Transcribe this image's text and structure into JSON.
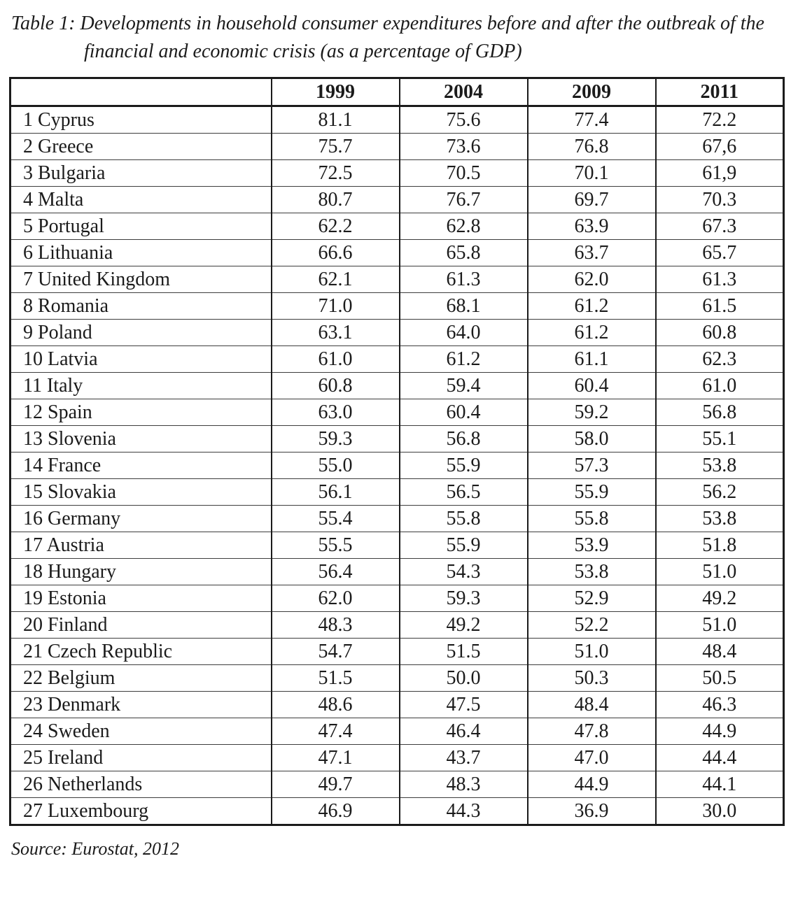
{
  "page": {
    "title_line1": "Table 1: Developments in household consumer expenditures before and after the outbreak of the",
    "title_line2": "financial and economic crisis (as a percentage of GDP)",
    "source": "Source: Eurostat, 2012",
    "ink_color": "#1b1b1b"
  },
  "chart_data": {
    "type": "table",
    "title": "Table 1: Developments in household consumer expenditures before and after the outbreak of the financial and economic crisis (as a percentage of GDP)",
    "columns": [
      "",
      "1999",
      "2004",
      "2009",
      "2011"
    ],
    "rows": [
      {
        "label": "1 Cyprus",
        "values": [
          "81.1",
          "75.6",
          "77.4",
          "72.2"
        ]
      },
      {
        "label": "2 Greece",
        "values": [
          "75.7",
          "73.6",
          "76.8",
          "67,6"
        ]
      },
      {
        "label": "3 Bulgaria",
        "values": [
          "72.5",
          "70.5",
          "70.1",
          "61,9"
        ]
      },
      {
        "label": "4 Malta",
        "values": [
          "80.7",
          "76.7",
          "69.7",
          "70.3"
        ]
      },
      {
        "label": "5 Portugal",
        "values": [
          "62.2",
          "62.8",
          "63.9",
          "67.3"
        ]
      },
      {
        "label": "6 Lithuania",
        "values": [
          "66.6",
          "65.8",
          "63.7",
          "65.7"
        ]
      },
      {
        "label": "7 United Kingdom",
        "values": [
          "62.1",
          "61.3",
          "62.0",
          "61.3"
        ]
      },
      {
        "label": "8 Romania",
        "values": [
          "71.0",
          "68.1",
          "61.2",
          "61.5"
        ]
      },
      {
        "label": "9 Poland",
        "values": [
          "63.1",
          "64.0",
          "61.2",
          "60.8"
        ]
      },
      {
        "label": "10 Latvia",
        "values": [
          "61.0",
          "61.2",
          "61.1",
          "62.3"
        ]
      },
      {
        "label": "11 Italy",
        "values": [
          "60.8",
          "59.4",
          "60.4",
          "61.0"
        ]
      },
      {
        "label": "12 Spain",
        "values": [
          "63.0",
          "60.4",
          "59.2",
          "56.8"
        ]
      },
      {
        "label": "13 Slovenia",
        "values": [
          "59.3",
          "56.8",
          "58.0",
          "55.1"
        ]
      },
      {
        "label": "14 France",
        "values": [
          "55.0",
          "55.9",
          "57.3",
          "53.8"
        ]
      },
      {
        "label": "15 Slovakia",
        "values": [
          "56.1",
          "56.5",
          "55.9",
          "56.2"
        ]
      },
      {
        "label": "16 Germany",
        "values": [
          "55.4",
          "55.8",
          "55.8",
          "53.8"
        ]
      },
      {
        "label": "17 Austria",
        "values": [
          "55.5",
          "55.9",
          "53.9",
          "51.8"
        ]
      },
      {
        "label": "18 Hungary",
        "values": [
          "56.4",
          "54.3",
          "53.8",
          "51.0"
        ]
      },
      {
        "label": "19 Estonia",
        "values": [
          "62.0",
          "59.3",
          "52.9",
          "49.2"
        ]
      },
      {
        "label": "20 Finland",
        "values": [
          "48.3",
          "49.2",
          "52.2",
          "51.0"
        ]
      },
      {
        "label": "21 Czech Republic",
        "values": [
          "54.7",
          "51.5",
          "51.0",
          "48.4"
        ]
      },
      {
        "label": "22 Belgium",
        "values": [
          "51.5",
          "50.0",
          "50.3",
          "50.5"
        ]
      },
      {
        "label": "23 Denmark",
        "values": [
          "48.6",
          "47.5",
          "48.4",
          "46.3"
        ]
      },
      {
        "label": "24 Sweden",
        "values": [
          "47.4",
          "46.4",
          "47.8",
          "44.9"
        ]
      },
      {
        "label": "25 Ireland",
        "values": [
          "47.1",
          "43.7",
          "47.0",
          "44.4"
        ]
      },
      {
        "label": "26 Netherlands",
        "values": [
          "49.7",
          "48.3",
          "44.9",
          "44.1"
        ]
      },
      {
        "label": "27 Luxembourg",
        "values": [
          "46.9",
          "44.3",
          "36.9",
          "30.0"
        ]
      }
    ],
    "source": "Source: Eurostat, 2012"
  }
}
